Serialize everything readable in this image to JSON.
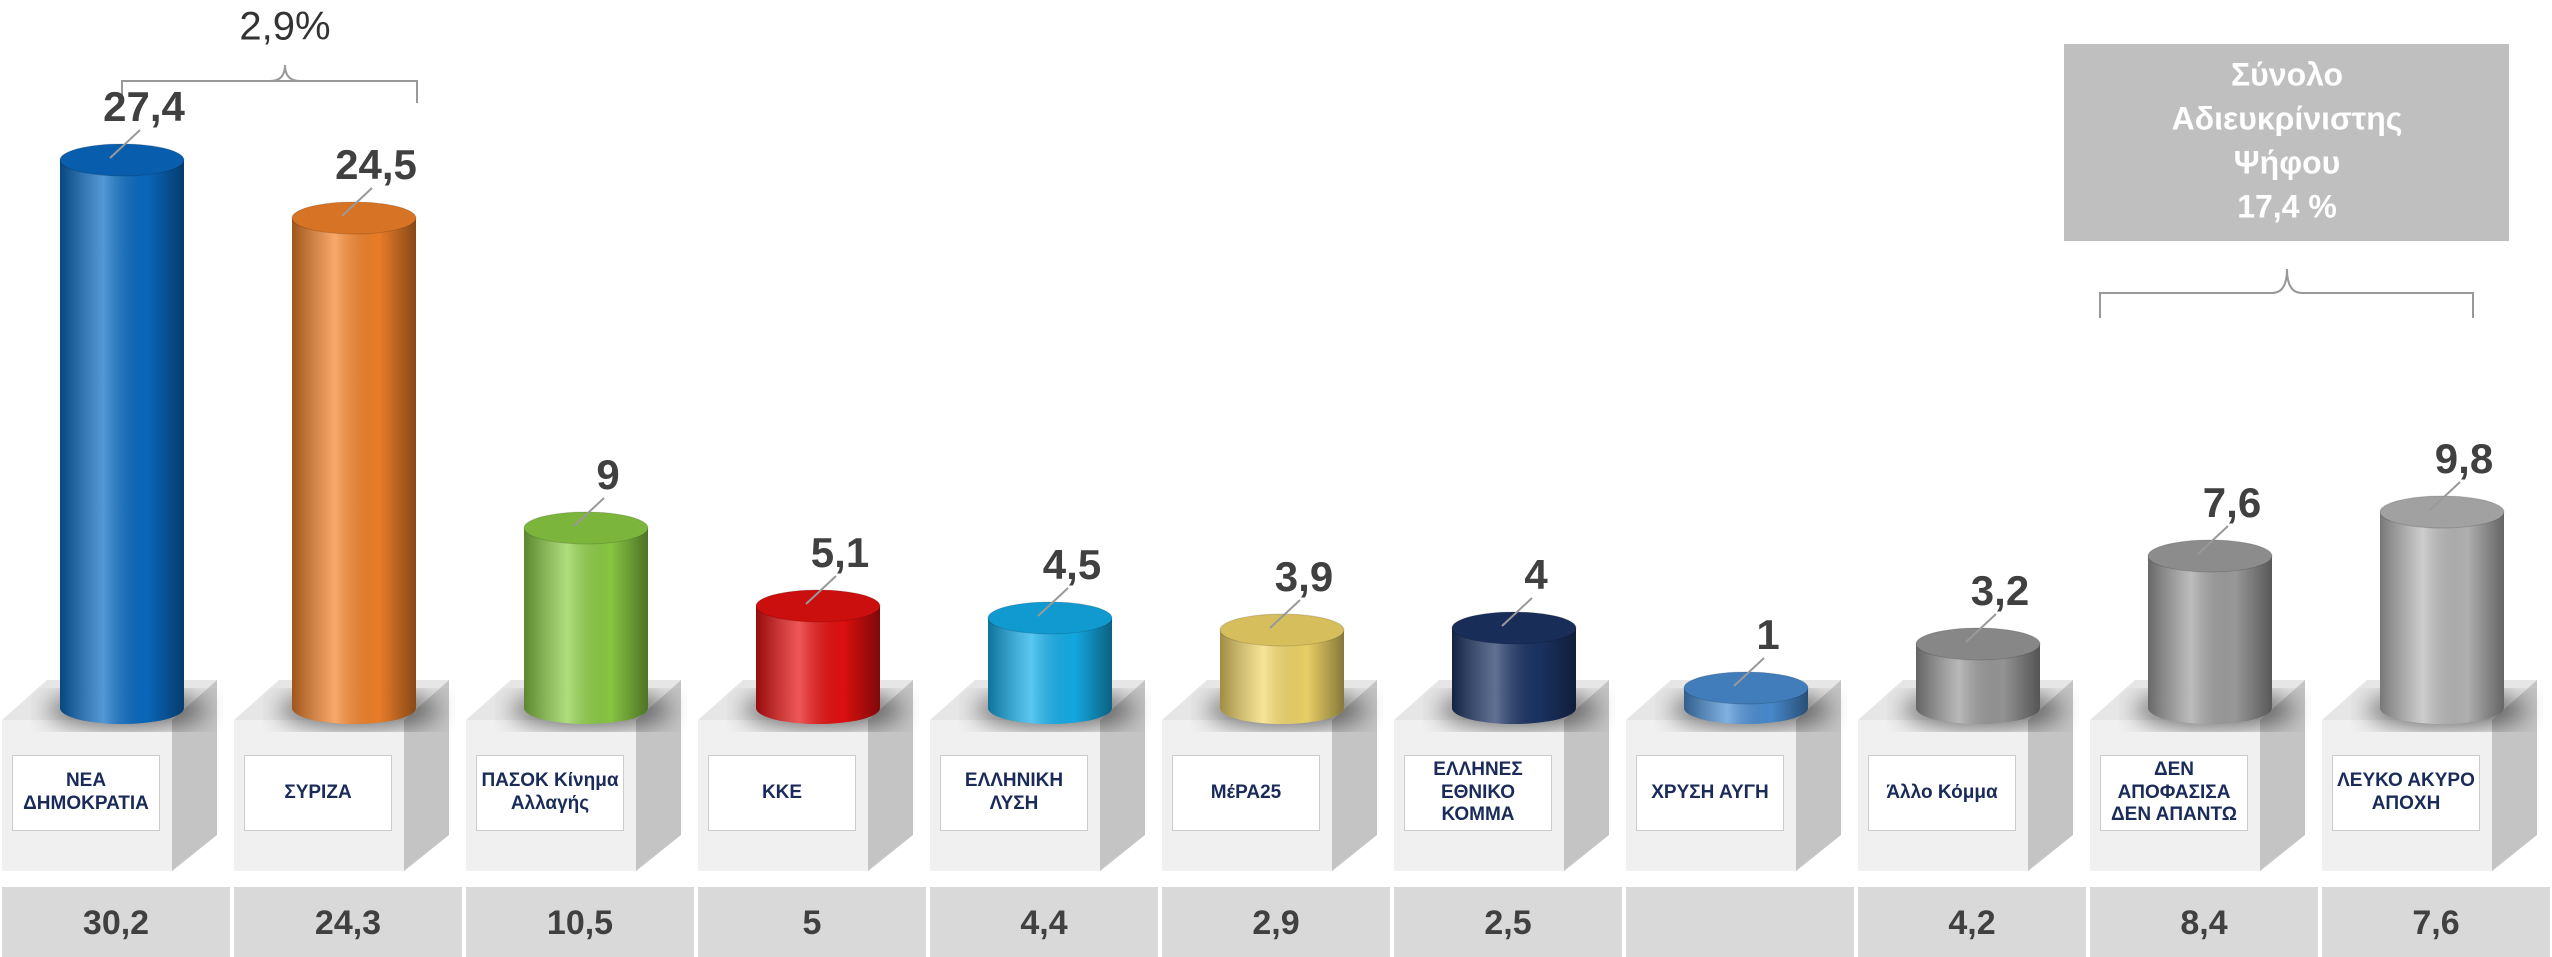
{
  "chart_data": {
    "type": "bar",
    "categories": [
      "ΝΕΑ ΔΗΜΟΚΡΑΤΙΑ",
      "ΣΥΡΙΖΑ",
      "ΠΑΣΟΚ Κίνημα Αλλαγής",
      "ΚΚΕ",
      "ΕΛΛΗΝΙΚΗ ΛΥΣΗ",
      "ΜέΡΑ25",
      "ΕΛΛΗΝΕΣ ΕΘΝΙΚΟ ΚΟΜΜΑ",
      "ΧΡΥΣΗ ΑΥΓΗ",
      "Άλλο Κόμμα",
      "ΔΕΝ ΑΠΟΦΑΣΙΣΑ ΔΕΝ ΑΠΑΝΤΩ",
      "ΛΕΥΚΟ ΑΚΥΡΟ ΑΠΟΧΗ"
    ],
    "values": [
      27.4,
      24.5,
      9,
      5.1,
      4.5,
      3.9,
      4,
      1,
      3.2,
      7.6,
      9.8
    ],
    "value_labels": [
      "27,4",
      "24,5",
      "9",
      "5,1",
      "4,5",
      "3,9",
      "4",
      "1",
      "3,2",
      "7,6",
      "9,8"
    ],
    "colors": [
      "#0a6cc4",
      "#f5832a",
      "#8dcf45",
      "#e81010",
      "#14b0ec",
      "#f4d96a",
      "#1c3566",
      "#4a8fd5",
      "#9a9a9a",
      "#a0a0a0",
      "#b8b8b8"
    ],
    "previous": {
      "values": [
        30.2,
        24.3,
        10.5,
        5,
        4.4,
        2.9,
        2.5,
        null,
        4.2,
        8.4,
        7.6
      ],
      "value_labels": [
        "30,2",
        "24,3",
        "10,5",
        "5",
        "4,4",
        "2,9",
        "2,5",
        null,
        "4,2",
        "8,4",
        "7,6"
      ]
    },
    "difference_annotation": "2,9%",
    "total_box": [
      "Σύνολο",
      "Αδιευκρίνιστης",
      "Ψήφου",
      "17,4 %"
    ]
  }
}
